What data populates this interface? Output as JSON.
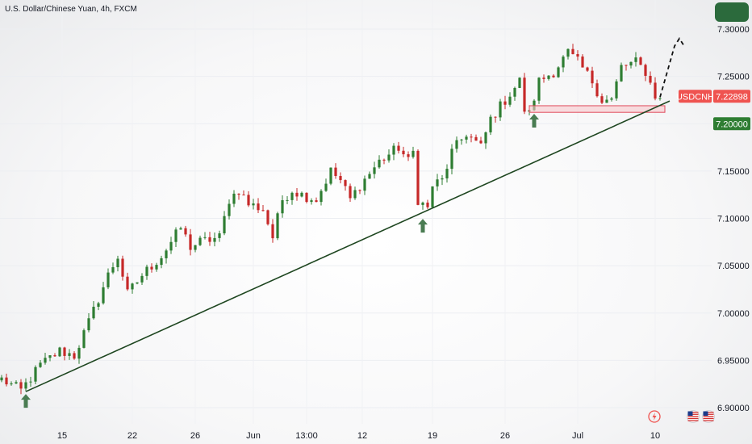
{
  "header": {
    "title": "U.S. Dollar/Chinese Yuan, 4h, FXCM"
  },
  "price_tags": {
    "symbol": "USDCNH",
    "current_price": "7.22898",
    "level_price": "7.20000"
  },
  "icons": [
    "flash-icon",
    "us-flag-icon",
    "us-flag-icon"
  ],
  "colors": {
    "up": "#2e7d32",
    "down": "#c62828",
    "trendline": "#1e4620",
    "zone_fill": "#f8c8cc",
    "zone_border": "#e0485a",
    "current_tag": "#ef5350",
    "level_tag": "#2e7d32",
    "arrow": "#4a7c52"
  },
  "chart_data": {
    "type": "candlestick",
    "title": "U.S. Dollar/Chinese Yuan, 4h, FXCM",
    "symbol": "USDCNH",
    "interval": "4h",
    "ylim": [
      6.88,
      7.315
    ],
    "y_ticks": [
      "7.30000",
      "7.25000",
      "7.20000",
      "7.15000",
      "7.10000",
      "7.05000",
      "7.00000",
      "6.95000",
      "6.90000"
    ],
    "x_tick_labels": [
      "15",
      "22",
      "26",
      "Jun",
      "13:00",
      "12",
      "19",
      "26",
      "Jul",
      "10"
    ],
    "x_tick_index": [
      12.5,
      27,
      40,
      52,
      63,
      74.5,
      89,
      104,
      119,
      135
    ],
    "total_slots": 150,
    "path": [
      [
        0,
        6.93
      ],
      [
        4,
        6.918
      ],
      [
        8,
        6.945
      ],
      [
        12,
        6.96
      ],
      [
        15,
        6.955
      ],
      [
        18,
        6.99
      ],
      [
        22,
        7.04
      ],
      [
        24,
        7.06
      ],
      [
        26,
        7.02
      ],
      [
        29,
        7.04
      ],
      [
        33,
        7.06
      ],
      [
        37,
        7.09
      ],
      [
        39,
        7.07
      ],
      [
        41,
        7.075
      ],
      [
        45,
        7.08
      ],
      [
        47,
        7.12
      ],
      [
        49,
        7.13
      ],
      [
        51,
        7.115
      ],
      [
        54,
        7.11
      ],
      [
        56,
        7.08
      ],
      [
        58,
        7.12
      ],
      [
        60,
        7.13
      ],
      [
        62,
        7.125
      ],
      [
        65,
        7.12
      ],
      [
        68,
        7.15
      ],
      [
        70,
        7.14
      ],
      [
        72,
        7.12
      ],
      [
        74,
        7.135
      ],
      [
        78,
        7.16
      ],
      [
        82,
        7.175
      ],
      [
        84,
        7.16
      ],
      [
        85,
        7.17
      ],
      [
        86,
        7.12
      ],
      [
        88,
        7.11
      ],
      [
        89,
        7.135
      ],
      [
        91,
        7.14
      ],
      [
        93,
        7.17
      ],
      [
        96,
        7.19
      ],
      [
        99,
        7.175
      ],
      [
        101,
        7.205
      ],
      [
        104,
        7.225
      ],
      [
        107,
        7.245
      ],
      [
        108,
        7.215
      ],
      [
        109,
        7.21
      ],
      [
        111,
        7.245
      ],
      [
        114,
        7.255
      ],
      [
        117,
        7.275
      ],
      [
        119,
        7.265
      ],
      [
        122,
        7.245
      ],
      [
        124,
        7.225
      ],
      [
        126,
        7.225
      ],
      [
        128,
        7.26
      ],
      [
        131,
        7.265
      ],
      [
        133,
        7.255
      ],
      [
        135,
        7.23
      ],
      [
        136,
        7.225
      ]
    ],
    "support_zone": {
      "y_low": 7.212,
      "y_high": 7.219,
      "x_start": 109,
      "x_end": 137
    },
    "trendline": {
      "points": [
        [
          5,
          6.917
        ],
        [
          138,
          7.224
        ]
      ]
    },
    "projection": {
      "points": [
        [
          136,
          7.228
        ],
        [
          139,
          7.282
        ],
        [
          140,
          7.29
        ],
        [
          141,
          7.282
        ]
      ]
    },
    "markers": [
      {
        "type": "up-arrow",
        "x": 5,
        "y": 6.917
      },
      {
        "type": "up-arrow",
        "x": 87,
        "y": 7.102
      },
      {
        "type": "up-arrow",
        "x": 110,
        "y": 7.213
      }
    ],
    "current_price": 7.22898,
    "highlighted_level": 7.2
  }
}
